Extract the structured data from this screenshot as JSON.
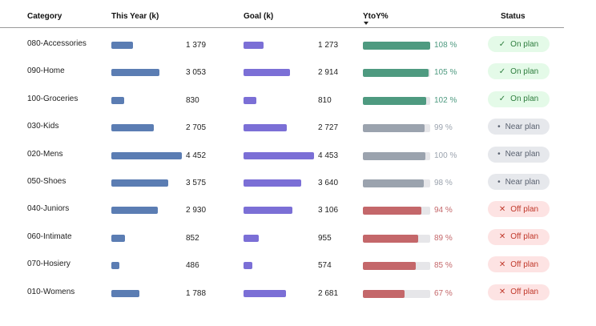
{
  "headers": {
    "category": "Category",
    "this_year": "This Year (k)",
    "goal": "Goal (k)",
    "ytoy": "YtoY%",
    "status": "Status"
  },
  "colors": {
    "this_year_bar": "#5b7db3",
    "goal_bar": "#7b6fd6",
    "on_plan": "#4e9a80",
    "near_plan": "#9ba3ae",
    "off_plan": "#c4676a"
  },
  "status_styles": {
    "on": {
      "icon": "check-icon",
      "glyph": "✓",
      "bg": "#e4fae8",
      "fg": "#2e7d3e",
      "value_color": "#4e9a80"
    },
    "near": {
      "icon": "dot-icon",
      "glyph": "•",
      "bg": "#e6e8ec",
      "fg": "#5a6270",
      "value_color": "#9ba3ae"
    },
    "off": {
      "icon": "cross-icon",
      "glyph": "✕",
      "bg": "#fde3e3",
      "fg": "#c0392b",
      "value_color": "#c4676a"
    }
  },
  "rows": [
    {
      "category": "080-Accessories",
      "this_year": 1379,
      "this_year_text": "1 379",
      "goal": 1273,
      "goal_text": "1 273",
      "ytoy": 108,
      "ytoy_text": "108 %",
      "status": "On plan",
      "status_key": "on"
    },
    {
      "category": "090-Home",
      "this_year": 3053,
      "this_year_text": "3 053",
      "goal": 2914,
      "goal_text": "2 914",
      "ytoy": 105,
      "ytoy_text": "105 %",
      "status": "On plan",
      "status_key": "on"
    },
    {
      "category": "100-Groceries",
      "this_year": 830,
      "this_year_text": "830",
      "goal": 810,
      "goal_text": "810",
      "ytoy": 102,
      "ytoy_text": "102 %",
      "status": "On plan",
      "status_key": "on"
    },
    {
      "category": "030-Kids",
      "this_year": 2705,
      "this_year_text": "2 705",
      "goal": 2727,
      "goal_text": "2 727",
      "ytoy": 99,
      "ytoy_text": "99 %",
      "status": "Near plan",
      "status_key": "near"
    },
    {
      "category": "020-Mens",
      "this_year": 4452,
      "this_year_text": "4 452",
      "goal": 4453,
      "goal_text": "4 453",
      "ytoy": 100,
      "ytoy_text": "100 %",
      "status": "Near plan",
      "status_key": "near"
    },
    {
      "category": "050-Shoes",
      "this_year": 3575,
      "this_year_text": "3 575",
      "goal": 3640,
      "goal_text": "3 640",
      "ytoy": 98,
      "ytoy_text": "98 %",
      "status": "Near plan",
      "status_key": "near"
    },
    {
      "category": "040-Juniors",
      "this_year": 2930,
      "this_year_text": "2 930",
      "goal": 3106,
      "goal_text": "3 106",
      "ytoy": 94,
      "ytoy_text": "94 %",
      "status": "Off plan",
      "status_key": "off"
    },
    {
      "category": "060-Intimate",
      "this_year": 852,
      "this_year_text": "852",
      "goal": 955,
      "goal_text": "955",
      "ytoy": 89,
      "ytoy_text": "89 %",
      "status": "Off plan",
      "status_key": "off"
    },
    {
      "category": "070-Hosiery",
      "this_year": 486,
      "this_year_text": "486",
      "goal": 574,
      "goal_text": "574",
      "ytoy": 85,
      "ytoy_text": "85 %",
      "status": "Off plan",
      "status_key": "off"
    },
    {
      "category": "010-Womens",
      "this_year": 1788,
      "this_year_text": "1 788",
      "goal": 2681,
      "goal_text": "2 681",
      "ytoy": 67,
      "ytoy_text": "67 %",
      "status": "Off plan",
      "status_key": "off"
    }
  ]
}
